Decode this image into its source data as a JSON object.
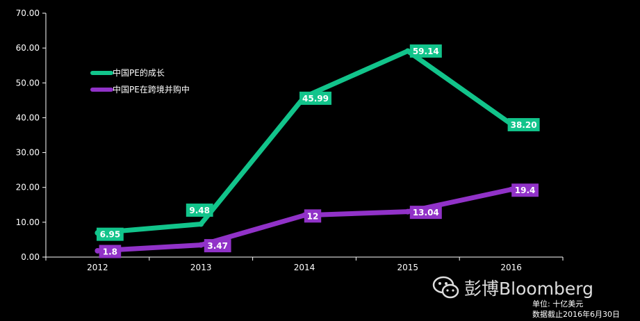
{
  "chart_data": {
    "type": "line",
    "categories": [
      "2012",
      "2013",
      "2014",
      "2015",
      "2016"
    ],
    "ylim": [
      0,
      70
    ],
    "yticks": [
      "0.00",
      "10.00",
      "20.00",
      "30.00",
      "40.00",
      "50.00",
      "60.00",
      "70.00"
    ],
    "legend_position": "upper-left",
    "grid": false,
    "series": [
      {
        "name": "中国PE的成长",
        "color": "#12c48b",
        "values": [
          6.95,
          9.48,
          45.99,
          59.14,
          38.2
        ],
        "labels": [
          "6.95",
          "9.48",
          "45.99",
          "59.14",
          "38.20"
        ]
      },
      {
        "name": "中国PE在跨境并购中",
        "color": "#9132c8",
        "values": [
          1.8,
          3.47,
          12,
          13.04,
          19.4
        ],
        "labels": [
          "1.8",
          "3.47",
          "12",
          "13.04",
          "19.4"
        ]
      }
    ]
  },
  "brand": {
    "text": "彭博Bloomberg",
    "icon": "wechat-icon"
  },
  "notes": {
    "unit": "单位: 十亿美元",
    "date": "数据截止2016年6月30日"
  }
}
